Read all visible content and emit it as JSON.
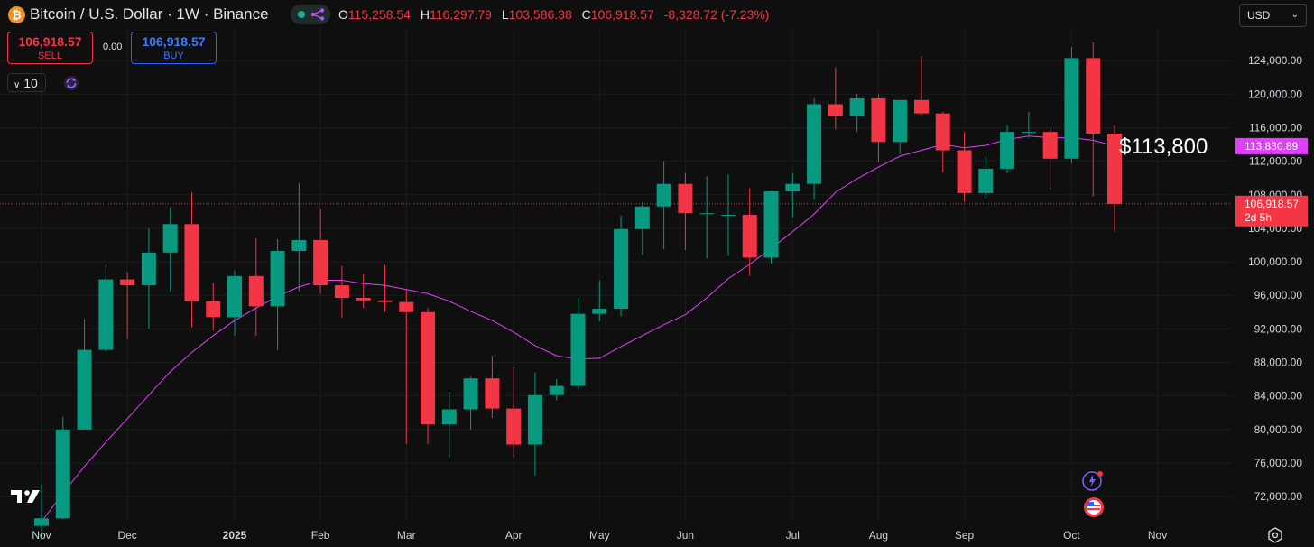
{
  "header": {
    "title": "Bitcoin / U.S. Dollar · 1W · Binance",
    "logo_glyph": "₿",
    "ohlc": [
      {
        "key": "O",
        "value": "115,258.54"
      },
      {
        "key": "H",
        "value": "116,297.79"
      },
      {
        "key": "L",
        "value": "103,586.38"
      },
      {
        "key": "C",
        "value": "106,918.57"
      }
    ],
    "change": "-8,328.72 (-7.23%)"
  },
  "trade": {
    "sell_price": "106,918.57",
    "sell_label": "SELL",
    "spread": "0.00",
    "buy_price": "106,918.57",
    "buy_label": "BUY"
  },
  "interval_value": "10",
  "currency": "USD",
  "annotation": "$113,800",
  "colors": {
    "up": "#089981",
    "down": "#f23645",
    "ma": "#e040fb",
    "background": "#0f0f0f",
    "grid": "#1c1c1c"
  },
  "icons": [
    "bitcoin-logo-icon",
    "indicator-share-icon",
    "chevron-down-icon",
    "sync-icon",
    "tradingview-logo-icon",
    "sparkle-bolt-icon",
    "us-flag-icon",
    "settings-icon"
  ],
  "chart_data": {
    "type": "candlestick",
    "title": "Bitcoin / U.S. Dollar · 1W · Binance",
    "ylim": [
      69000,
      128000
    ],
    "y_ticks": [
      72000,
      76000,
      80000,
      84000,
      88000,
      92000,
      96000,
      100000,
      104000,
      108000,
      112000,
      116000,
      120000,
      124000
    ],
    "y_tick_labels": [
      "72,000.00",
      "76,000.00",
      "80,000.00",
      "84,000.00",
      "88,000.00",
      "92,000.00",
      "96,000.00",
      "100,000.00",
      "104,000.00",
      "108,000.00",
      "112,000.00",
      "116,000.00",
      "120,000.00",
      "124,000.00"
    ],
    "x_labels": [
      {
        "label": "Nov",
        "week": 0
      },
      {
        "label": "Dec",
        "week": 4
      },
      {
        "label": "2025",
        "week": 9
      },
      {
        "label": "Feb",
        "week": 13
      },
      {
        "label": "Mar",
        "week": 17
      },
      {
        "label": "Apr",
        "week": 22
      },
      {
        "label": "May",
        "week": 26
      },
      {
        "label": "Jun",
        "week": 30
      },
      {
        "label": "Jul",
        "week": 35
      },
      {
        "label": "Aug",
        "week": 39
      },
      {
        "label": "Sep",
        "week": 43
      },
      {
        "label": "Oct",
        "week": 48
      },
      {
        "label": "Nov",
        "week": 52
      }
    ],
    "candles": [
      {
        "o": 68500,
        "h": 73500,
        "l": 66800,
        "c": 69400
      },
      {
        "o": 69400,
        "h": 81500,
        "l": 69300,
        "c": 80000
      },
      {
        "o": 80000,
        "h": 93200,
        "l": 80000,
        "c": 89500
      },
      {
        "o": 89500,
        "h": 99600,
        "l": 89300,
        "c": 97900
      },
      {
        "o": 97900,
        "h": 98800,
        "l": 90800,
        "c": 97200
      },
      {
        "o": 97200,
        "h": 104000,
        "l": 92000,
        "c": 101100
      },
      {
        "o": 101100,
        "h": 106500,
        "l": 96500,
        "c": 104500
      },
      {
        "o": 104500,
        "h": 108300,
        "l": 92200,
        "c": 95300
      },
      {
        "o": 95300,
        "h": 97500,
        "l": 91800,
        "c": 93400
      },
      {
        "o": 93400,
        "h": 99000,
        "l": 91200,
        "c": 98300
      },
      {
        "o": 98300,
        "h": 102800,
        "l": 91200,
        "c": 94700
      },
      {
        "o": 94700,
        "h": 102700,
        "l": 89500,
        "c": 101300
      },
      {
        "o": 101300,
        "h": 109400,
        "l": 96500,
        "c": 102600
      },
      {
        "o": 102600,
        "h": 106300,
        "l": 96200,
        "c": 97200
      },
      {
        "o": 97200,
        "h": 99500,
        "l": 93300,
        "c": 95700
      },
      {
        "o": 95700,
        "h": 98500,
        "l": 94500,
        "c": 95400
      },
      {
        "o": 95400,
        "h": 99600,
        "l": 94000,
        "c": 95200
      },
      {
        "o": 95200,
        "h": 96600,
        "l": 78300,
        "c": 94000
      },
      {
        "o": 94000,
        "h": 94500,
        "l": 78300,
        "c": 80600
      },
      {
        "o": 80600,
        "h": 84500,
        "l": 76700,
        "c": 82400
      },
      {
        "o": 82400,
        "h": 86300,
        "l": 80000,
        "c": 86100
      },
      {
        "o": 86100,
        "h": 88800,
        "l": 81400,
        "c": 82500
      },
      {
        "o": 82500,
        "h": 87400,
        "l": 76700,
        "c": 78200
      },
      {
        "o": 78200,
        "h": 86800,
        "l": 74500,
        "c": 84100
      },
      {
        "o": 84100,
        "h": 86000,
        "l": 83500,
        "c": 85200
      },
      {
        "o": 85200,
        "h": 95700,
        "l": 84800,
        "c": 93800
      },
      {
        "o": 93800,
        "h": 97800,
        "l": 92900,
        "c": 94400
      },
      {
        "o": 94400,
        "h": 105500,
        "l": 93500,
        "c": 103900
      },
      {
        "o": 103900,
        "h": 107100,
        "l": 100800,
        "c": 106600
      },
      {
        "o": 106600,
        "h": 112000,
        "l": 101500,
        "c": 109300
      },
      {
        "o": 109300,
        "h": 110600,
        "l": 101400,
        "c": 105800
      },
      {
        "o": 105800,
        "h": 110200,
        "l": 100400,
        "c": 105800
      },
      {
        "o": 105600,
        "h": 110400,
        "l": 100700,
        "c": 105600
      },
      {
        "o": 105600,
        "h": 108800,
        "l": 98300,
        "c": 100500
      },
      {
        "o": 100500,
        "h": 108500,
        "l": 99800,
        "c": 108400
      },
      {
        "o": 108400,
        "h": 110600,
        "l": 105300,
        "c": 109300
      },
      {
        "o": 109300,
        "h": 119500,
        "l": 107400,
        "c": 118800
      },
      {
        "o": 118800,
        "h": 123200,
        "l": 115800,
        "c": 117400
      },
      {
        "o": 117400,
        "h": 120000,
        "l": 115500,
        "c": 119500
      },
      {
        "o": 119500,
        "h": 120000,
        "l": 111900,
        "c": 114300
      },
      {
        "o": 114300,
        "h": 119300,
        "l": 112800,
        "c": 119300
      },
      {
        "o": 119300,
        "h": 124500,
        "l": 117500,
        "c": 117700
      },
      {
        "o": 117700,
        "h": 117900,
        "l": 110700,
        "c": 113300
      },
      {
        "o": 113300,
        "h": 115500,
        "l": 107200,
        "c": 108200
      },
      {
        "o": 108200,
        "h": 112600,
        "l": 107500,
        "c": 111100
      },
      {
        "o": 111100,
        "h": 116300,
        "l": 110600,
        "c": 115500
      },
      {
        "o": 115500,
        "h": 117900,
        "l": 114800,
        "c": 115500
      },
      {
        "o": 115500,
        "h": 116100,
        "l": 108700,
        "c": 112300
      },
      {
        "o": 112300,
        "h": 125600,
        "l": 111700,
        "c": 124300
      },
      {
        "o": 124300,
        "h": 126200,
        "l": 107800,
        "c": 115300
      },
      {
        "o": 115300,
        "h": 116300,
        "l": 103600,
        "c": 106900
      }
    ],
    "ma_series": [
      69000,
      72400,
      75600,
      78500,
      81300,
      84100,
      86900,
      89200,
      91200,
      93000,
      94500,
      95900,
      97000,
      97800,
      97800,
      97400,
      97200,
      96700,
      96200,
      95300,
      94100,
      93000,
      91600,
      90000,
      88800,
      88400,
      88500,
      89900,
      91200,
      92500,
      93700,
      95700,
      98000,
      99700,
      101600,
      103600,
      105700,
      108300,
      109900,
      111300,
      112600,
      113300,
      114000,
      113600,
      113900,
      114600,
      115000,
      114800,
      114800,
      114500,
      113800
    ],
    "ma_last_label": "113,830.89",
    "last_price": 106918.57,
    "last_price_label": "106,918.57",
    "countdown": "2d 5h"
  }
}
